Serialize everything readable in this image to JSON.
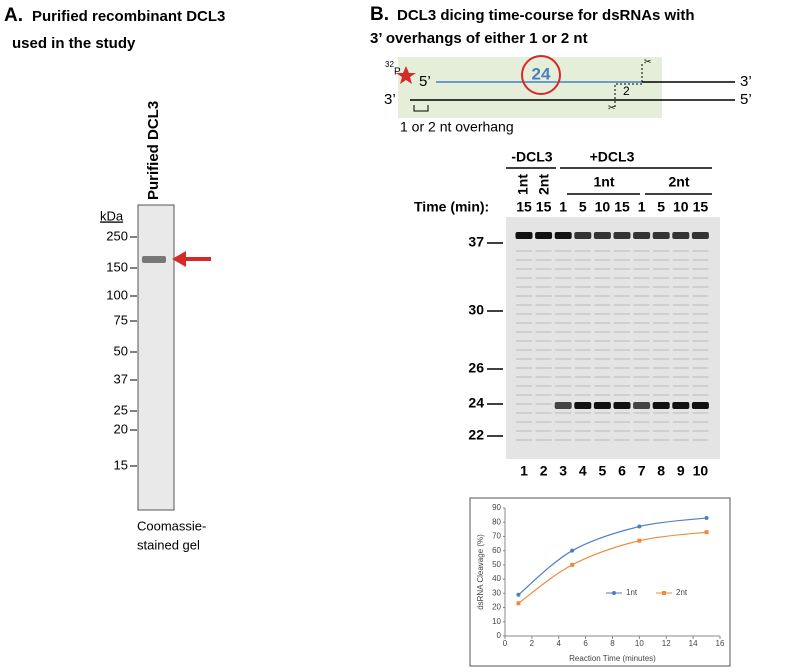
{
  "panel_a": {
    "letter": "A.",
    "title_lines": [
      "Purified recombinant DCL3",
      "used in the study"
    ],
    "lane_label": "Purified DCL3",
    "unit": "kDa",
    "ladder": [
      "250",
      "150",
      "100",
      "75",
      "50",
      "37",
      "25",
      "20",
      "15"
    ],
    "caption_lines": [
      "Coomassie-",
      "stained gel"
    ]
  },
  "panel_b": {
    "letter": "B.",
    "title_lines": [
      "DCL3 dicing time-course for dsRNAs with",
      "3’ overhangs of either 1 or 2 nt"
    ],
    "diagram": {
      "isotope_mass": "32",
      "isotope": "P",
      "top_left": "5’",
      "product": "24",
      "top_right": "3’",
      "bottom_left": "3’",
      "bottom_right": "5’",
      "overhang_size": "2",
      "overhang_note": "1 or 2 nt overhang"
    },
    "gel": {
      "minus_group": "-DCL3",
      "plus_group": "+DCL3",
      "minus_lanes": [
        "1nt",
        "2nt"
      ],
      "plus_subgroups": [
        "1nt",
        "2nt"
      ],
      "time_label": "Time (min):",
      "times": [
        "15",
        "15",
        "1",
        "5",
        "10",
        "15",
        "1",
        "5",
        "10",
        "15"
      ],
      "markers": [
        "37",
        "30",
        "26",
        "24",
        "22"
      ],
      "lane_numbers": [
        "1",
        "2",
        "3",
        "4",
        "5",
        "6",
        "7",
        "8",
        "9",
        "10"
      ]
    }
  },
  "chart_data": {
    "type": "line",
    "x_label": "Reaction Time (minutes)",
    "y_label": "dsRNA Cleavage (%)",
    "x": [
      1,
      5,
      10,
      15
    ],
    "series": [
      {
        "name": "1nt",
        "color": "#4a7fc1",
        "values": [
          29,
          60,
          77,
          83
        ]
      },
      {
        "name": "2nt",
        "color": "#ee8a3c",
        "values": [
          23,
          50,
          67,
          73
        ]
      }
    ],
    "xlim": [
      0,
      16
    ],
    "xticks": [
      0,
      2,
      4,
      6,
      8,
      10,
      12,
      14,
      16
    ],
    "ylim": [
      0,
      90
    ],
    "yticks": [
      0,
      10,
      20,
      30,
      40,
      50,
      60,
      70,
      80,
      90
    ],
    "legend": "right"
  }
}
